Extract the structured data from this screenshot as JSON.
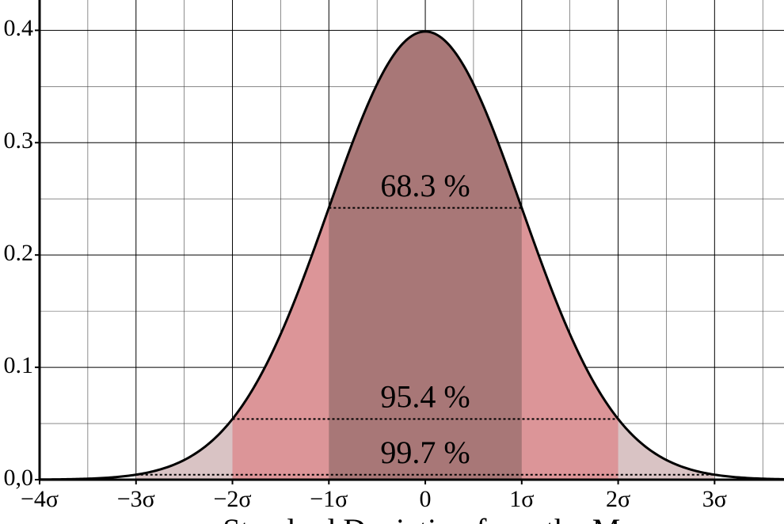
{
  "chart_data": {
    "type": "normal",
    "mean": 0,
    "sd": 1,
    "xlabel": "Standard Deviation from the Mean",
    "xlim": [
      -4,
      3.72
    ],
    "ylim": [
      0,
      0.427
    ],
    "xticks": [
      {
        "value": -4,
        "label": "−4σ"
      },
      {
        "value": -3,
        "label": "−3σ"
      },
      {
        "value": -2,
        "label": "−2σ"
      },
      {
        "value": -1,
        "label": "−1σ"
      },
      0,
      {
        "value": 1,
        "label": "1σ"
      },
      {
        "value": 2,
        "label": "2σ"
      },
      {
        "value": 3,
        "label": "3σ"
      }
    ],
    "yticks": [
      {
        "value": 0,
        "label": "0,0"
      },
      0.1,
      0.2,
      0.3,
      0.4
    ],
    "minor_xticks": [
      -3.5,
      -2.5,
      -1.5,
      -0.5,
      0.5,
      1.5,
      2.5,
      3.5
    ],
    "minor_yticks": [
      0.05,
      0.15,
      0.25,
      0.35
    ],
    "grid": true,
    "curve_color": "#000000",
    "regions": [
      {
        "sigma": 3,
        "value": 99.7,
        "label": "99.7 %",
        "color": "#d9c3c4"
      },
      {
        "sigma": 2,
        "value": 95.4,
        "label": "95.4 %",
        "color": "#dc9598"
      },
      {
        "sigma": 1,
        "value": 68.3,
        "label": "68.3 %",
        "color": "#a87777"
      }
    ]
  }
}
